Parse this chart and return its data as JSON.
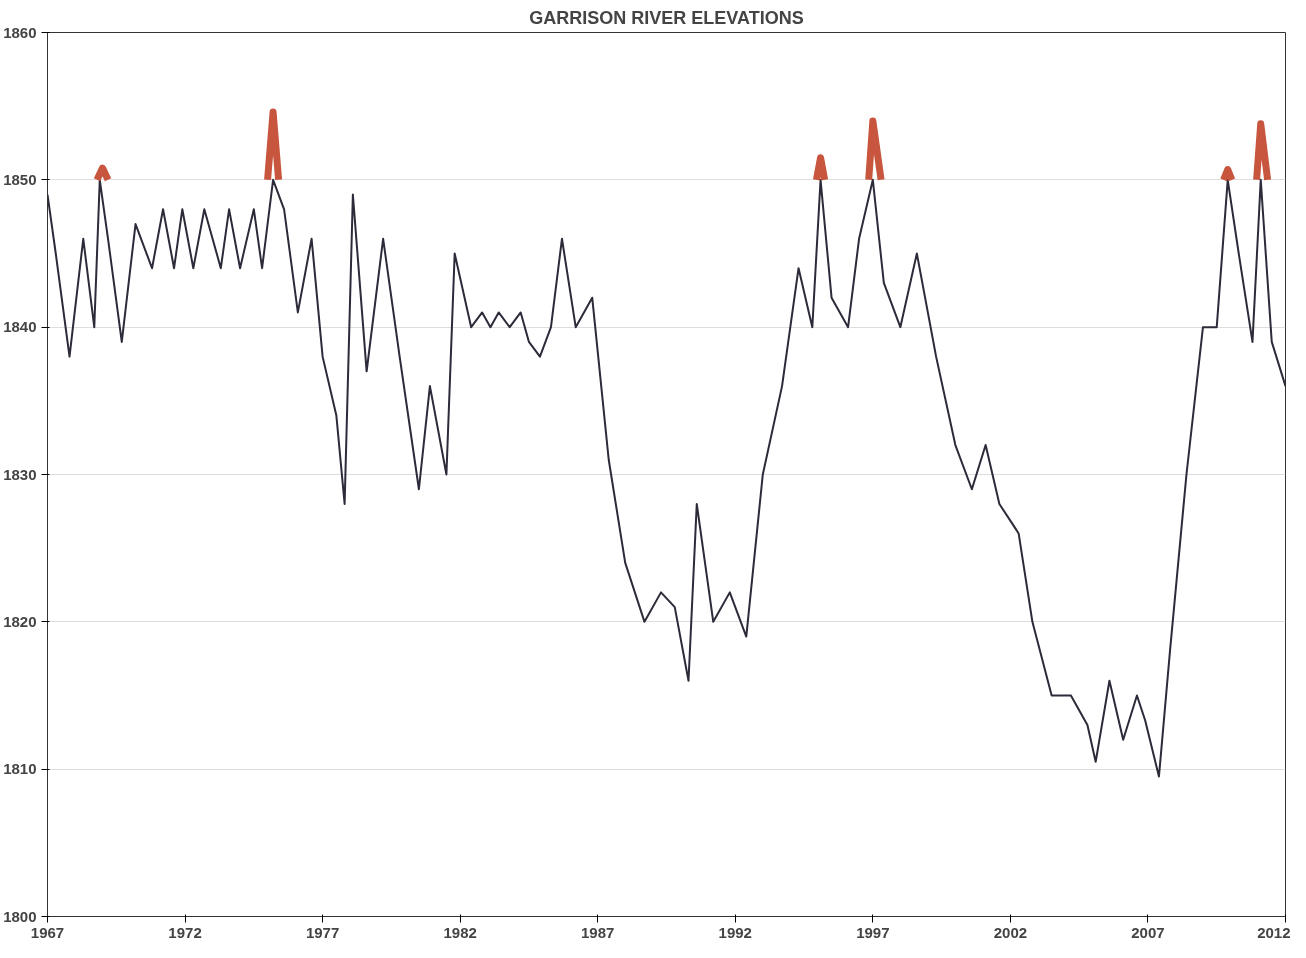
{
  "chart_data": {
    "type": "line",
    "title": "GARRISON RIVER ELEVATIONS",
    "xlim": [
      1967,
      2012
    ],
    "xticks": [
      1967,
      1972,
      1977,
      1982,
      1987,
      1992,
      1997,
      2002,
      2007,
      2012
    ],
    "ylim": [
      1800,
      1860
    ],
    "yticks": [
      1800,
      1810,
      1820,
      1830,
      1840,
      1850,
      1860
    ],
    "grid": "y",
    "line_style": "solid",
    "series": [
      {
        "color": "#2b2b3a",
        "x": [
          1967.0,
          1967.3,
          1967.8,
          1968.3,
          1968.7,
          1968.9,
          1969.2,
          1969.7,
          1970.2,
          1970.8,
          1971.2,
          1971.6,
          1971.9,
          1972.3,
          1972.7,
          1973.3,
          1973.6,
          1974.0,
          1974.5,
          1974.8,
          1975.2,
          1975.6,
          1976.1,
          1976.6,
          1977.0,
          1977.5,
          1977.8,
          1978.1,
          1978.6,
          1979.2,
          1979.8,
          1980.5,
          1980.9,
          1981.5,
          1981.8,
          1982.4,
          1982.8,
          1983.1,
          1983.4,
          1983.8,
          1984.2,
          1984.5,
          1984.9,
          1985.3,
          1985.7,
          1986.2,
          1986.8,
          1987.4,
          1988.0,
          1988.7,
          1989.3,
          1989.8,
          1990.3,
          1990.6,
          1991.2,
          1991.8,
          1992.4,
          1993.0,
          1993.7,
          1994.3,
          1994.8,
          1995.1,
          1995.5,
          1996.1,
          1996.5,
          1997.0,
          1997.4,
          1998.0,
          1998.6,
          1999.3,
          2000.0,
          2000.6,
          2001.1,
          2001.6,
          2002.3,
          2002.8,
          2003.5,
          2004.2,
          2004.8,
          2005.1,
          2005.6,
          2006.1,
          2006.6,
          2006.9,
          2007.4,
          2007.8,
          2008.4,
          2009.0,
          2009.5,
          2009.9,
          2010.3,
          2010.8,
          2011.1,
          2011.5,
          2012.0
        ],
        "values": [
          1849,
          1845,
          1838,
          1846,
          1840,
          1850,
          1846,
          1839,
          1847,
          1844,
          1848,
          1844,
          1848,
          1844,
          1848,
          1844,
          1848,
          1844,
          1848,
          1844,
          1850,
          1848,
          1841,
          1846,
          1838,
          1834,
          1828,
          1849,
          1837,
          1846,
          1838,
          1829,
          1836,
          1830,
          1845,
          1840,
          1841,
          1840,
          1841,
          1840,
          1841,
          1839,
          1838,
          1840,
          1846,
          1840,
          1842,
          1831,
          1824,
          1820,
          1822,
          1821,
          1816,
          1828,
          1820,
          1822,
          1819,
          1830,
          1836,
          1844,
          1840,
          1850,
          1842,
          1840,
          1846,
          1850,
          1843,
          1840,
          1845,
          1838,
          1832,
          1829,
          1832,
          1828,
          1826,
          1820,
          1815,
          1815,
          1813,
          1810.5,
          1816,
          1812,
          1815,
          1813.3,
          1809.5,
          1818,
          1830,
          1840,
          1840,
          1850,
          1845,
          1839,
          1850,
          1839,
          1836
        ]
      },
      {
        "color": "#c8553d",
        "x": [
          1968.8,
          1969.0,
          1969.2,
          1969.3,
          1975.0,
          1975.2,
          1975.4,
          1975.5,
          1994.95,
          1995.1,
          1995.25,
          1995.4,
          1996.85,
          1997.0,
          1997.3,
          1997.4,
          2009.75,
          2009.9,
          2010.05,
          2010.2,
          2010.95,
          2011.1,
          2011.35
        ],
        "values": [
          1850,
          1850.8,
          1850,
          null,
          1850,
          1854.6,
          1850,
          null,
          1850,
          1851.5,
          1850,
          null,
          1850,
          1854,
          1850,
          null,
          1850,
          1850.7,
          1850,
          null,
          1850,
          1853.8,
          1850
        ]
      }
    ]
  }
}
